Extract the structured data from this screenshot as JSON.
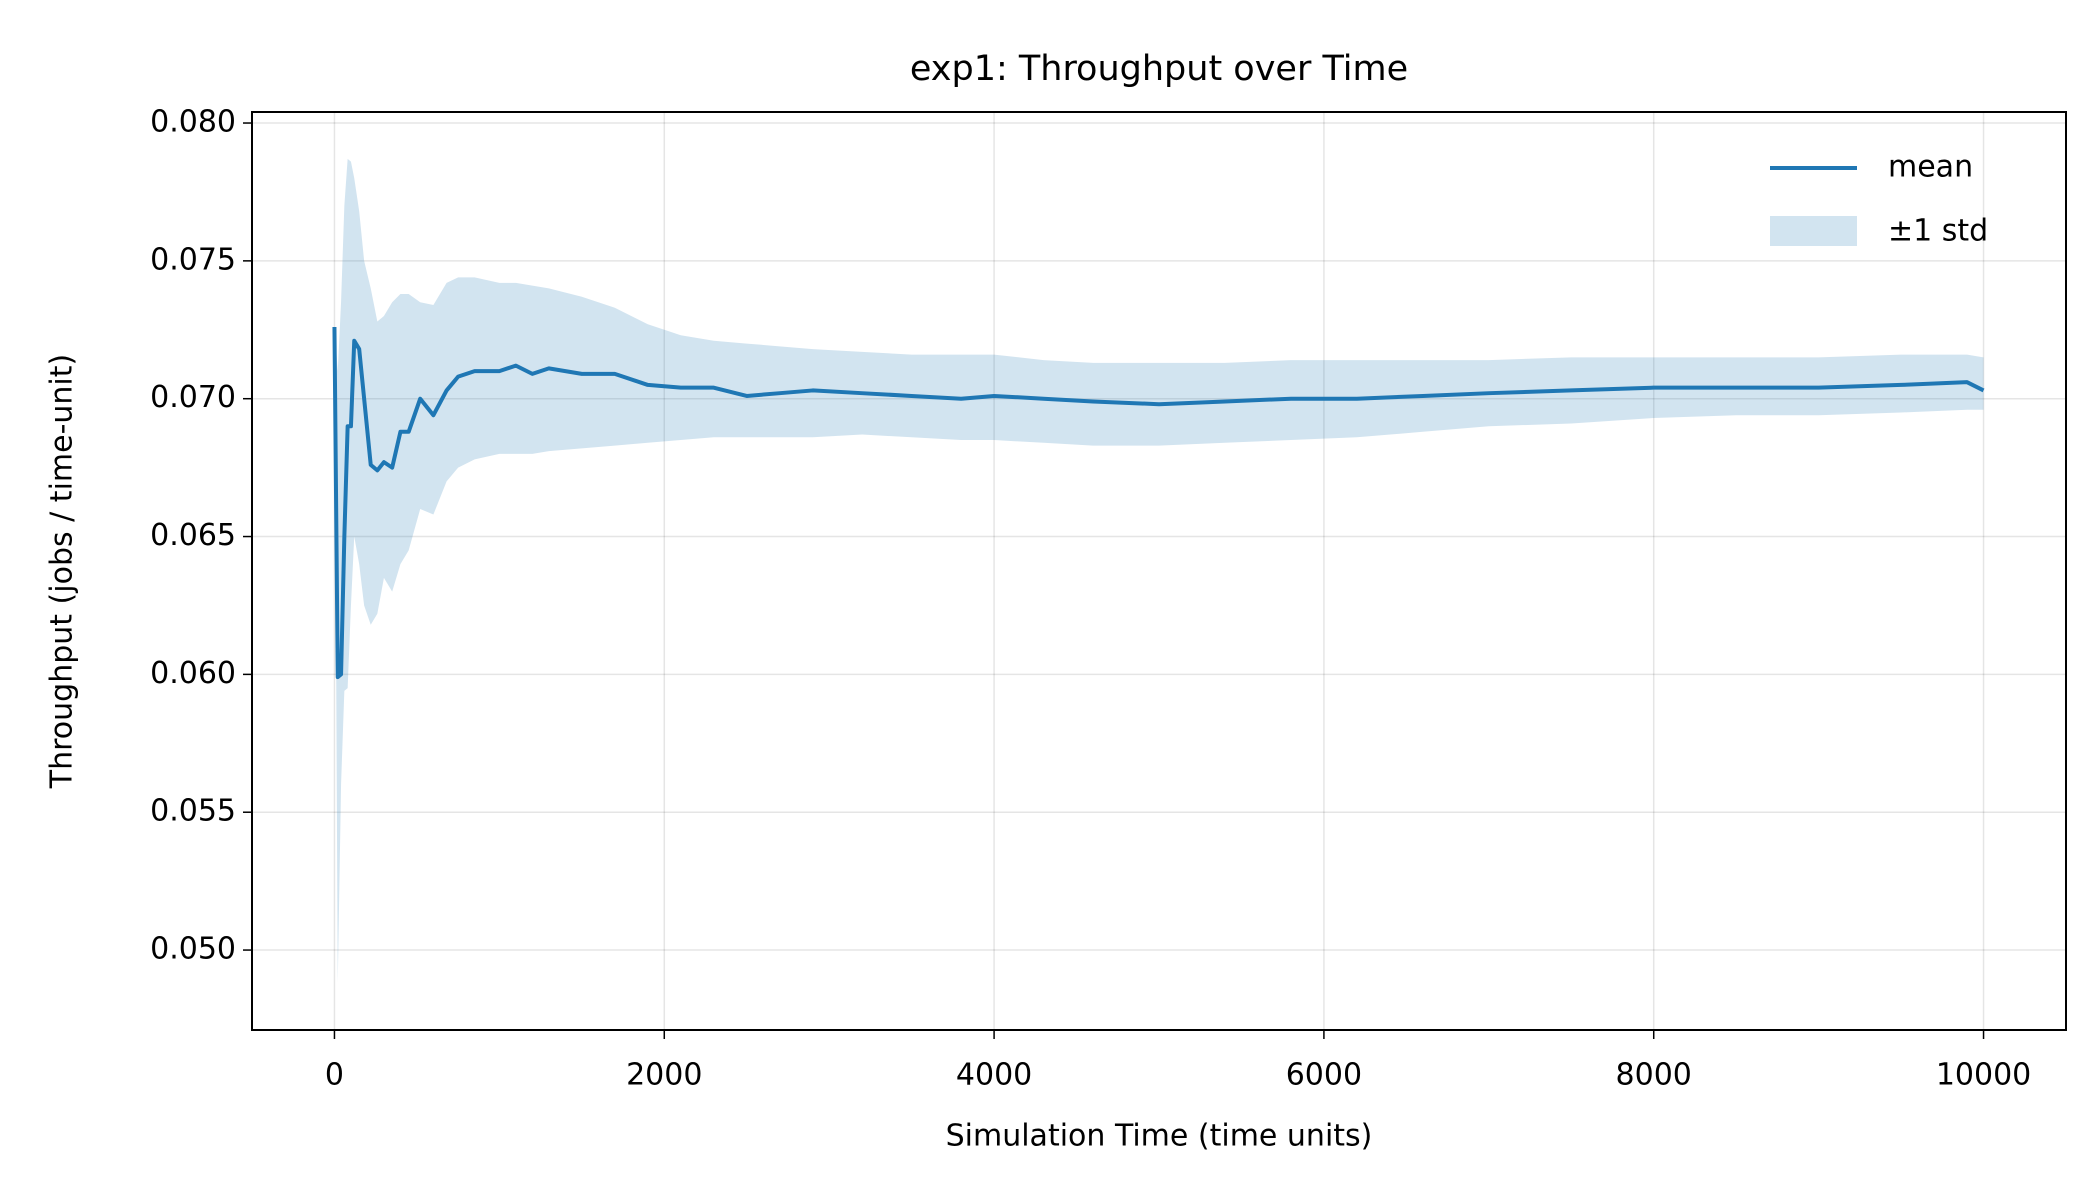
{
  "chart_data": {
    "type": "line",
    "title": "exp1: Throughput over Time",
    "xlabel": "Simulation Time (time units)",
    "ylabel": "Throughput (jobs / time-unit)",
    "x": [
      0,
      20,
      40,
      60,
      80,
      100,
      120,
      150,
      180,
      220,
      260,
      300,
      350,
      400,
      450,
      520,
      600,
      680,
      750,
      850,
      1000,
      1100,
      1200,
      1300,
      1500,
      1700,
      1900,
      2100,
      2300,
      2500,
      2700,
      2900,
      3200,
      3500,
      3800,
      4000,
      4300,
      4600,
      5000,
      5400,
      5800,
      6200,
      6600,
      7000,
      7500,
      8000,
      8500,
      9000,
      9500,
      9900,
      10000
    ],
    "series": [
      {
        "name": "mean",
        "color": "#1f77b4",
        "values": [
          0.0726,
          0.0599,
          0.06,
          0.065,
          0.069,
          0.069,
          0.0721,
          0.0718,
          0.07,
          0.0676,
          0.0674,
          0.0677,
          0.0675,
          0.0688,
          0.0688,
          0.07,
          0.0694,
          0.0703,
          0.0708,
          0.071,
          0.071,
          0.0712,
          0.0709,
          0.0711,
          0.0709,
          0.0709,
          0.0705,
          0.0704,
          0.0704,
          0.0701,
          0.0702,
          0.0703,
          0.0702,
          0.0701,
          0.07,
          0.0701,
          0.07,
          0.0699,
          0.0698,
          0.0699,
          0.07,
          0.07,
          0.0701,
          0.0702,
          0.0703,
          0.0704,
          0.0704,
          0.0704,
          0.0705,
          0.0706,
          0.0703
        ]
      }
    ],
    "band": {
      "name": "±1 std",
      "color": "#1f77b4",
      "opacity": 0.2,
      "upper": [
        0.0726,
        0.071,
        0.0735,
        0.077,
        0.0787,
        0.0786,
        0.078,
        0.0768,
        0.075,
        0.074,
        0.0728,
        0.073,
        0.0735,
        0.0738,
        0.0738,
        0.0735,
        0.0734,
        0.0742,
        0.0744,
        0.0744,
        0.0742,
        0.0742,
        0.0741,
        0.074,
        0.0737,
        0.0733,
        0.0727,
        0.0723,
        0.0721,
        0.072,
        0.0719,
        0.0718,
        0.0717,
        0.0716,
        0.0716,
        0.0716,
        0.0714,
        0.0713,
        0.0713,
        0.0713,
        0.0714,
        0.0714,
        0.0714,
        0.0714,
        0.0715,
        0.0715,
        0.0715,
        0.0715,
        0.0716,
        0.0716,
        0.0715
      ],
      "lower": [
        0.0726,
        0.0488,
        0.056,
        0.0594,
        0.0595,
        0.0625,
        0.065,
        0.064,
        0.0625,
        0.0618,
        0.0622,
        0.0635,
        0.063,
        0.064,
        0.0645,
        0.066,
        0.0658,
        0.067,
        0.0675,
        0.0678,
        0.068,
        0.068,
        0.068,
        0.0681,
        0.0682,
        0.0683,
        0.0684,
        0.0685,
        0.0686,
        0.0686,
        0.0686,
        0.0686,
        0.0687,
        0.0686,
        0.0685,
        0.0685,
        0.0684,
        0.0683,
        0.0683,
        0.0684,
        0.0685,
        0.0686,
        0.0688,
        0.069,
        0.0691,
        0.0693,
        0.0694,
        0.0694,
        0.0695,
        0.0696,
        0.0696
      ]
    },
    "xlim": [
      -500,
      10500
    ],
    "ylim": [
      0.0471,
      0.0804
    ],
    "xticks": [
      0,
      2000,
      4000,
      6000,
      8000,
      10000
    ],
    "yticks": [
      {
        "value": 0.05,
        "label": "0.050"
      },
      {
        "value": 0.055,
        "label": "0.055"
      },
      {
        "value": 0.06,
        "label": "0.060"
      },
      {
        "value": 0.065,
        "label": "0.065"
      },
      {
        "value": 0.07,
        "label": "0.070"
      },
      {
        "value": 0.075,
        "label": "0.075"
      },
      {
        "value": 0.08,
        "label": "0.080"
      }
    ],
    "grid": true,
    "legend": "upper right"
  }
}
